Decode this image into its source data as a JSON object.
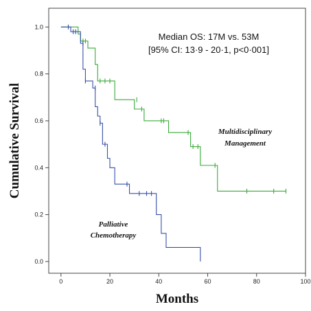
{
  "chart_data": {
    "type": "line",
    "xlabel": "Months",
    "ylabel": "Cumulative Survival",
    "xlim": [
      -5,
      100
    ],
    "ylim": [
      -0.05,
      1.08
    ],
    "x_ticks": [
      0,
      20,
      40,
      60,
      80,
      100
    ],
    "y_ticks": [
      0.0,
      0.2,
      0.4,
      0.6,
      0.8,
      1.0
    ],
    "x_tick_labels": [
      "0",
      "20",
      "40",
      "60",
      "80",
      "100"
    ],
    "y_tick_labels": [
      "0.0",
      "0.2",
      "0.4",
      "0.6",
      "0.8",
      "1.0"
    ],
    "annotation_lines": [
      "Median OS: 17M vs. 53M",
      "[95% CI: 13·9 - 20·1, p<0·001]"
    ],
    "series": [
      {
        "name": "Multidisciplinary Management",
        "label_lines": [
          "Multidisciplinary",
          "Management"
        ],
        "color": "#3aaa3a",
        "steps": [
          [
            0,
            1.0
          ],
          [
            7,
            0.97
          ],
          [
            8,
            0.94
          ],
          [
            11,
            0.91
          ],
          [
            14,
            0.84
          ],
          [
            15,
            0.77
          ],
          [
            22,
            0.69
          ],
          [
            30,
            0.65
          ],
          [
            34,
            0.6
          ],
          [
            44,
            0.55
          ],
          [
            53,
            0.49
          ],
          [
            57,
            0.41
          ],
          [
            64,
            0.3
          ],
          [
            92,
            0.3
          ]
        ],
        "censored": [
          [
            9,
            0.94
          ],
          [
            10,
            0.94
          ],
          [
            16,
            0.77
          ],
          [
            18,
            0.77
          ],
          [
            20,
            0.77
          ],
          [
            31,
            0.69
          ],
          [
            33,
            0.65
          ],
          [
            41,
            0.6
          ],
          [
            42,
            0.6
          ],
          [
            52,
            0.55
          ],
          [
            54,
            0.49
          ],
          [
            56,
            0.49
          ],
          [
            63,
            0.41
          ],
          [
            76,
            0.3
          ],
          [
            87,
            0.3
          ],
          [
            92,
            0.3
          ]
        ]
      },
      {
        "name": "Palliative Chemotherapy",
        "label_lines": [
          "Palliative",
          "Chemotherapy"
        ],
        "color": "#3650a8",
        "steps": [
          [
            0,
            1.0
          ],
          [
            4,
            0.98
          ],
          [
            8,
            0.93
          ],
          [
            9,
            0.82
          ],
          [
            10,
            0.77
          ],
          [
            13,
            0.74
          ],
          [
            14,
            0.66
          ],
          [
            15,
            0.62
          ],
          [
            16,
            0.59
          ],
          [
            17,
            0.5
          ],
          [
            19,
            0.44
          ],
          [
            20,
            0.4
          ],
          [
            22,
            0.33
          ],
          [
            28,
            0.29
          ],
          [
            39,
            0.2
          ],
          [
            41,
            0.12
          ],
          [
            43,
            0.06
          ],
          [
            57,
            0.0
          ]
        ],
        "censored": [
          [
            3,
            1.0
          ],
          [
            5,
            0.98
          ],
          [
            6,
            0.98
          ],
          [
            9,
            0.93
          ],
          [
            10,
            0.77
          ],
          [
            14,
            0.74
          ],
          [
            16,
            0.59
          ],
          [
            18,
            0.5
          ],
          [
            27,
            0.33
          ],
          [
            32,
            0.29
          ],
          [
            35,
            0.29
          ],
          [
            37,
            0.29
          ]
        ]
      }
    ]
  }
}
